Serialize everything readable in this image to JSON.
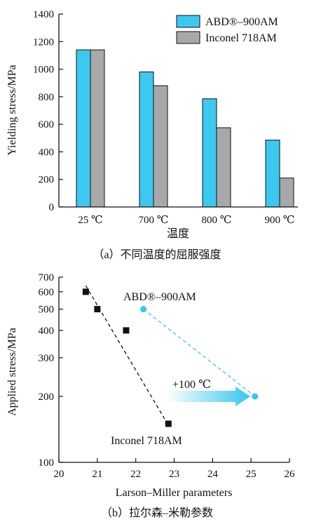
{
  "chart_data": [
    {
      "type": "bar",
      "categories": [
        "25 ℃",
        "700 ℃",
        "800 ℃",
        "900 ℃"
      ],
      "series": [
        {
          "name": "ABD®–900AM",
          "color": "#3cc8f0",
          "values": [
            1140,
            980,
            785,
            485
          ]
        },
        {
          "name": "Inconel 718AM",
          "color": "#a8a8aa",
          "values": [
            1140,
            880,
            575,
            210
          ]
        }
      ],
      "xlabel": "温度",
      "ylabel": "Yielding stress/MPa",
      "ylim": [
        0,
        1400
      ],
      "yticks": [
        0,
        200,
        400,
        600,
        800,
        1000,
        1200,
        1400
      ],
      "legend": "top-right",
      "grid": false,
      "caption": "（a）不同温度的屈服强度"
    },
    {
      "type": "scatter",
      "xlabel": "Larson–Miller parameters",
      "ylabel": "Applied stress/MPa",
      "xlim": [
        20,
        26
      ],
      "xticks": [
        20,
        21,
        22,
        23,
        24,
        25,
        26
      ],
      "ylim": [
        100,
        700
      ],
      "yscale": "log",
      "yticks": [
        100,
        200,
        300,
        400,
        500,
        600,
        700
      ],
      "series": [
        {
          "name": "Inconel 718AM",
          "color": "#111111",
          "marker": "square",
          "points": [
            [
              20.7,
              600
            ],
            [
              21.0,
              500
            ],
            [
              21.75,
              400
            ],
            [
              22.85,
              150
            ]
          ],
          "trend": [
            [
              20.7,
              640
            ],
            [
              22.75,
              158
            ]
          ]
        },
        {
          "name": "ABD®–900AM",
          "color": "#36c6ef",
          "marker": "circle",
          "points": [
            [
              22.2,
              500
            ],
            [
              25.1,
              200
            ]
          ]
        }
      ],
      "annotation": "+100 ℃",
      "caption": "（b）拉尔森–米勒参数"
    }
  ]
}
